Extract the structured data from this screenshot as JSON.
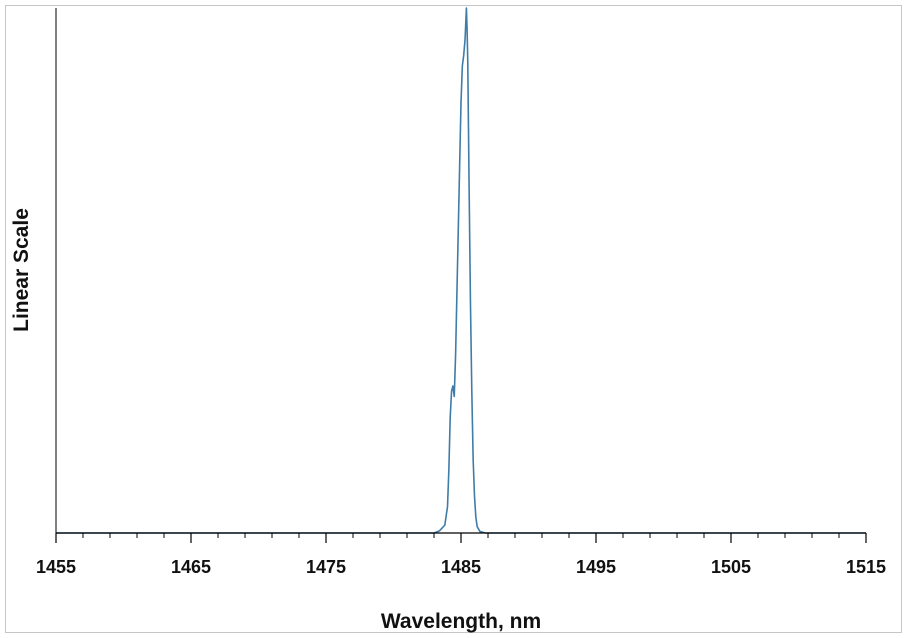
{
  "chart_data": {
    "type": "line",
    "title": "",
    "xlabel": "Wavelength, nm",
    "ylabel": "Linear Scale",
    "xlim": [
      1455,
      1515
    ],
    "ylim": [
      0,
      1
    ],
    "x_major_ticks": [
      1455,
      1465,
      1475,
      1485,
      1495,
      1505,
      1515
    ],
    "x_tick_labels": [
      "1455",
      "1465",
      "1475",
      "1485",
      "1495",
      "1505",
      "1515"
    ],
    "x_minor_step": 2,
    "y_tick_labels": false,
    "grid": false,
    "legend": "none",
    "line_color": "#3f7ca7",
    "series": [
      {
        "x": [
          1455,
          1465,
          1483.0,
          1483.4,
          1483.8,
          1484.0,
          1484.1,
          1484.2,
          1484.3,
          1484.4,
          1484.45,
          1484.5,
          1484.6,
          1484.7,
          1484.8,
          1484.9,
          1485.0,
          1485.1,
          1485.2,
          1485.3,
          1485.35,
          1485.4,
          1485.45,
          1485.5,
          1485.6,
          1485.7,
          1485.8,
          1485.9,
          1486.0,
          1486.1,
          1486.2,
          1486.4,
          1486.8,
          1505,
          1515
        ],
        "y": [
          0,
          0,
          0.0,
          0.004,
          0.015,
          0.05,
          0.12,
          0.22,
          0.27,
          0.28,
          0.27,
          0.26,
          0.34,
          0.46,
          0.58,
          0.7,
          0.82,
          0.89,
          0.91,
          0.94,
          0.97,
          1.0,
          0.96,
          0.9,
          0.66,
          0.44,
          0.27,
          0.14,
          0.07,
          0.03,
          0.012,
          0.003,
          0.0,
          0,
          0
        ]
      }
    ]
  }
}
